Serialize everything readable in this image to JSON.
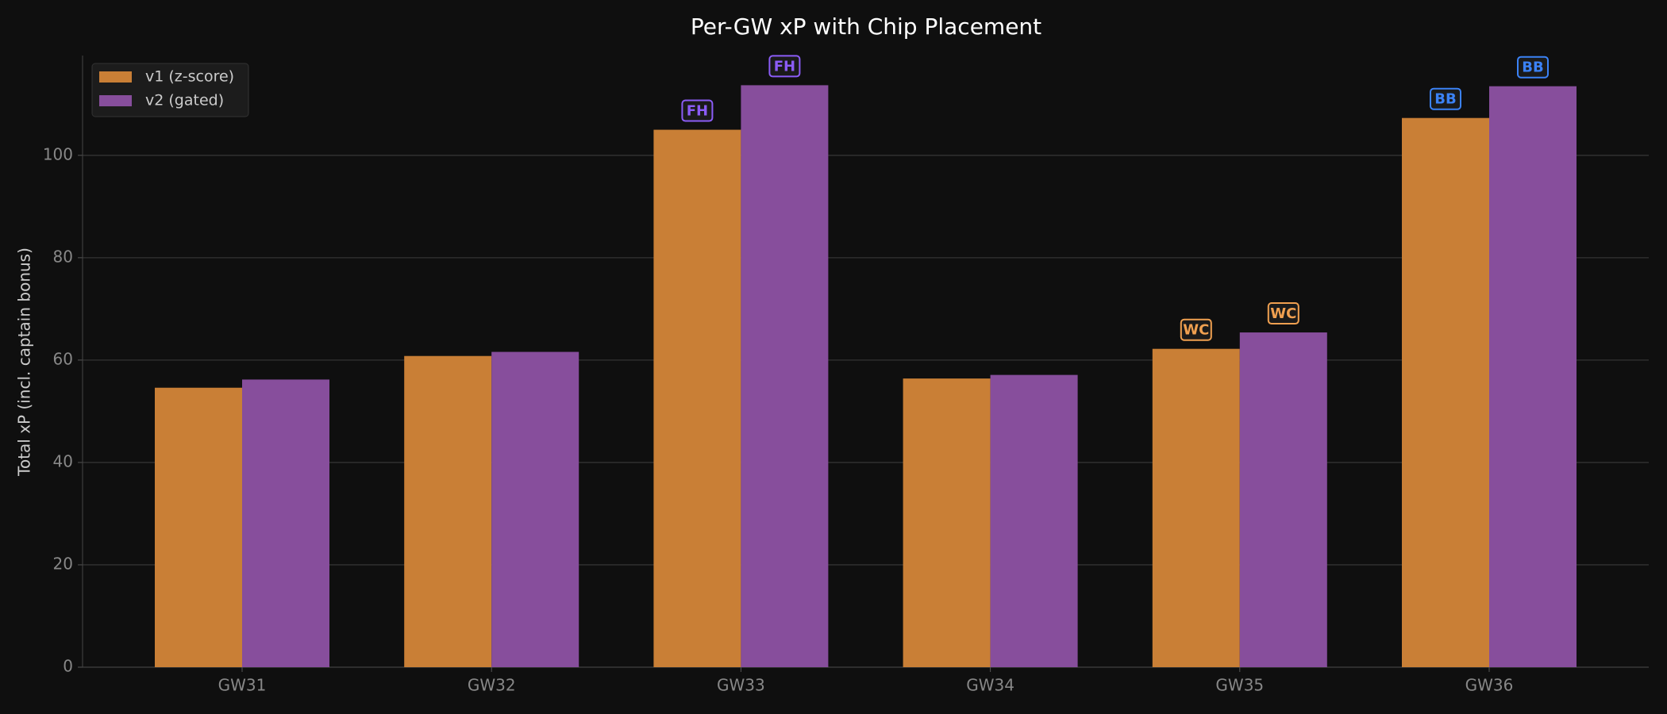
{
  "chart_data": {
    "type": "bar",
    "title": "Per-GW xP with Chip Placement",
    "y_label": "Total xP (incl. captain bonus)",
    "categories": [
      "GW31",
      "GW32",
      "GW33",
      "GW34",
      "GW35",
      "GW36"
    ],
    "series": [
      {
        "name": "v1 (z-score)",
        "color": "#c97f36",
        "values": [
          54.6,
          60.8,
          105.0,
          56.4,
          62.2,
          107.3
        ],
        "chips": [
          null,
          null,
          "FH",
          null,
          "WC",
          "BB"
        ]
      },
      {
        "name": "v2 (gated)",
        "color": "#874e9c",
        "values": [
          56.2,
          61.6,
          113.7,
          57.1,
          65.4,
          113.5
        ],
        "chips": [
          null,
          null,
          "FH",
          null,
          "WC",
          "BB"
        ]
      }
    ],
    "chip_colors": {
      "FH": "#8b5cf6",
      "WC": "#f0a050",
      "BB": "#3b82f6"
    },
    "ylim": [
      0,
      119.5
    ],
    "yticks": [
      0,
      20,
      40,
      60,
      80,
      100
    ],
    "grid": true,
    "legend": "upper left"
  }
}
